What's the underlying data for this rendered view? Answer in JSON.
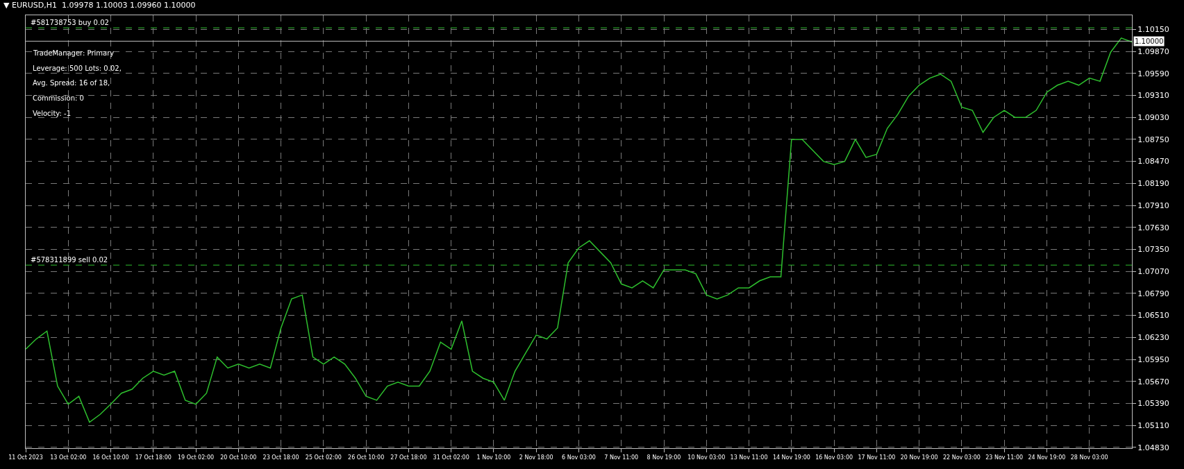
{
  "chart_data": {
    "type": "line",
    "title": "▼ EURUSD,H1  1.09978 1.10003 1.09960 1.10000",
    "categories": [
      "11 Oct 2023",
      null,
      null,
      null,
      "13 Oct 02:00",
      null,
      null,
      null,
      "16 Oct 10:00",
      null,
      null,
      null,
      "17 Oct 18:00",
      null,
      null,
      null,
      "19 Oct 02:00",
      null,
      null,
      null,
      "20 Oct 10:00",
      null,
      null,
      null,
      "23 Oct 18:00",
      null,
      null,
      null,
      "25 Oct 02:00",
      null,
      null,
      null,
      "26 Oct 10:00",
      null,
      null,
      null,
      "27 Oct 18:00",
      null,
      null,
      null,
      "31 Oct 02:00",
      null,
      null,
      null,
      "1 Nov 10:00",
      null,
      null,
      null,
      "2 Nov 18:00",
      null,
      null,
      null,
      "6 Nov 03:00",
      null,
      null,
      null,
      "7 Nov 11:00",
      null,
      null,
      null,
      "8 Nov 19:00",
      null,
      null,
      null,
      "10 Nov 03:00",
      null,
      null,
      null,
      "13 Nov 11:00",
      null,
      null,
      null,
      "14 Nov 19:00",
      null,
      null,
      null,
      "16 Nov 03:00",
      null,
      null,
      null,
      "17 Nov 11:00",
      null,
      null,
      null,
      "20 Nov 19:00",
      null,
      null,
      null,
      "22 Nov 03:00",
      null,
      null,
      null,
      "23 Nov 11:00",
      null,
      null,
      null,
      "24 Nov 19:00",
      null,
      null,
      null,
      "28 Nov 03:00",
      null,
      null,
      null,
      null
    ],
    "series": [
      {
        "color": "#2ec02e",
        "values": [
          1.0608,
          1.0621,
          1.0631,
          1.0561,
          1.0538,
          1.0548,
          1.0515,
          1.0525,
          1.0538,
          1.0552,
          1.0557,
          1.0571,
          1.058,
          1.0575,
          1.058,
          1.0543,
          1.0538,
          1.0552,
          1.0598,
          1.0584,
          1.0589,
          1.0584,
          1.0589,
          1.0584,
          1.0635,
          1.0672,
          1.0677,
          1.0598,
          1.0589,
          1.0598,
          1.0589,
          1.0571,
          1.0548,
          1.0543,
          1.0561,
          1.0566,
          1.0561,
          1.0561,
          1.058,
          1.0617,
          1.0608,
          1.0644,
          1.058,
          1.0571,
          1.0566,
          1.0543,
          1.058,
          1.0603,
          1.0626,
          1.0621,
          1.0635,
          1.0718,
          1.0737,
          1.0746,
          1.0732,
          1.0718,
          1.0691,
          1.0686,
          1.0695,
          1.0686,
          1.0709,
          1.0709,
          1.0709,
          1.0704,
          1.0677,
          1.0672,
          1.0677,
          1.0686,
          1.0686,
          1.0695,
          1.07,
          1.07,
          1.0875,
          1.0875,
          1.0861,
          1.0847,
          1.0843,
          1.0847,
          1.0875,
          1.0852,
          1.0856,
          1.0889,
          1.0907,
          1.093,
          1.0944,
          1.0953,
          1.0958,
          1.0949,
          1.0916,
          1.0912,
          1.0884,
          1.0903,
          1.0912,
          1.0903,
          1.0903,
          1.0912,
          1.0935,
          1.0944,
          1.0949,
          1.0944,
          1.0953,
          1.0949,
          1.0986,
          1.1004,
          1.0999
        ]
      }
    ],
    "ylim": [
      1.0482,
      1.1033
    ],
    "yticks": [
      {
        "value": 1.0483,
        "label": "1.04830"
      },
      {
        "value": 1.0511,
        "label": "1.05110"
      },
      {
        "value": 1.0539,
        "label": "1.05390"
      },
      {
        "value": 1.0567,
        "label": "1.05670"
      },
      {
        "value": 1.0595,
        "label": "1.05950"
      },
      {
        "value": 1.0623,
        "label": "1.06230"
      },
      {
        "value": 1.0651,
        "label": "1.06510"
      },
      {
        "value": 1.0679,
        "label": "1.06790"
      },
      {
        "value": 1.0707,
        "label": "1.07070"
      },
      {
        "value": 1.0735,
        "label": "1.07350"
      },
      {
        "value": 1.0763,
        "label": "1.07630"
      },
      {
        "value": 1.0791,
        "label": "1.07910"
      },
      {
        "value": 1.0819,
        "label": "1.08190"
      },
      {
        "value": 1.0847,
        "label": "1.08470"
      },
      {
        "value": 1.0875,
        "label": "1.08750"
      },
      {
        "value": 1.0903,
        "label": "1.09030"
      },
      {
        "value": 1.0931,
        "label": "1.09310"
      },
      {
        "value": 1.0959,
        "label": "1.09590"
      },
      {
        "value": 1.0987,
        "label": "1.09870"
      },
      {
        "value": 1.1015,
        "label": "1.10150"
      }
    ],
    "grid": true,
    "ref_lines": [
      {
        "axis": "y",
        "value": 1.1017,
        "label": "#581738753 buy 0.02",
        "color": "#2ec02e",
        "line_style": "dashed"
      },
      {
        "axis": "y",
        "value": 1.0715,
        "label": "#578311899 sell 0.02",
        "color": "#2ec02e",
        "line_style": "dashed"
      },
      {
        "axis": "y",
        "value": 1.1,
        "label": "1.10000",
        "color": "#c0c0c0",
        "line_style": "solid"
      }
    ],
    "annotations": [
      "TradeManager: Primary",
      "Leverage: 500 Lots: 0.02,",
      "Avg. Spread: 16 of 18,",
      "Commission: 0",
      "Velocity: -1"
    ]
  }
}
